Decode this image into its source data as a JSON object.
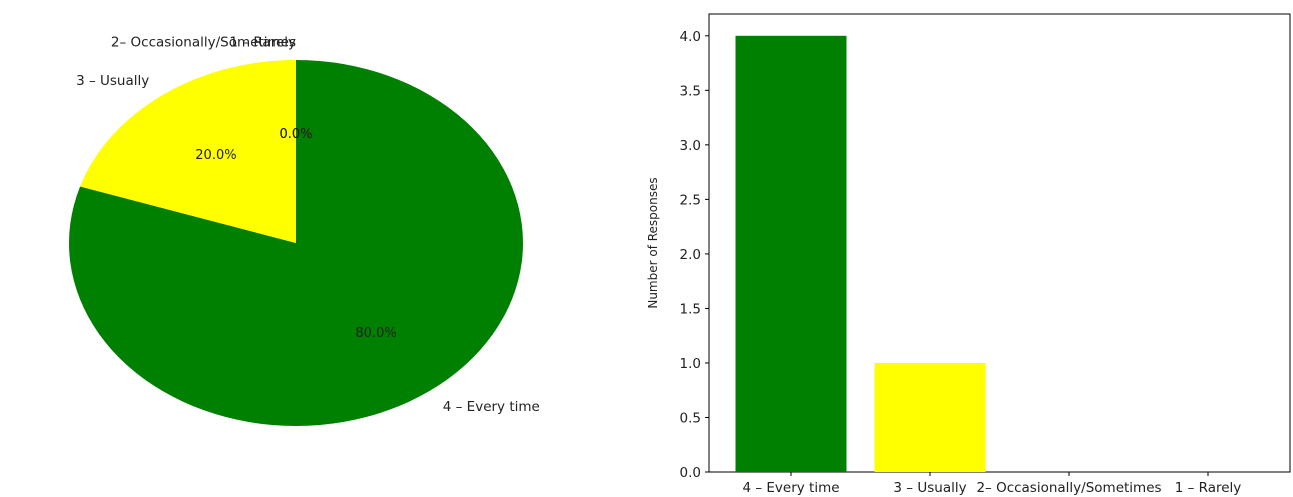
{
  "chart_data": [
    {
      "type": "pie",
      "categories": [
        "4 – Every time",
        "3 – Usually",
        "2– Occasionally/Sometimes",
        "1 – Rarely"
      ],
      "values": [
        80.0,
        20.0,
        0.0,
        0.0
      ],
      "value_labels": [
        "80.0%",
        "20.0%",
        "0.0%",
        "0.0%"
      ],
      "colors": [
        "#008000",
        "#ffff00",
        "#ffa500",
        "#ff0000"
      ],
      "start_angle_deg": 90,
      "direction": "clockwise",
      "title": ""
    },
    {
      "type": "bar",
      "categories": [
        "4 – Every time",
        "3 – Usually",
        "2– Occasionally/Sometimes",
        "1 – Rarely"
      ],
      "values": [
        4,
        1,
        0,
        0
      ],
      "colors": [
        "#008000",
        "#ffff00",
        "#ffa500",
        "#ff0000"
      ],
      "ylabel": "Number of Responses",
      "xlabel": "",
      "title": "",
      "ylim": [
        0,
        4.2
      ],
      "yticks": [
        0.0,
        0.5,
        1.0,
        1.5,
        2.0,
        2.5,
        3.0,
        3.5,
        4.0
      ],
      "ytick_labels": [
        "0.0",
        "0.5",
        "1.0",
        "1.5",
        "2.0",
        "2.5",
        "3.0",
        "3.5",
        "4.0"
      ],
      "grid": false
    }
  ]
}
